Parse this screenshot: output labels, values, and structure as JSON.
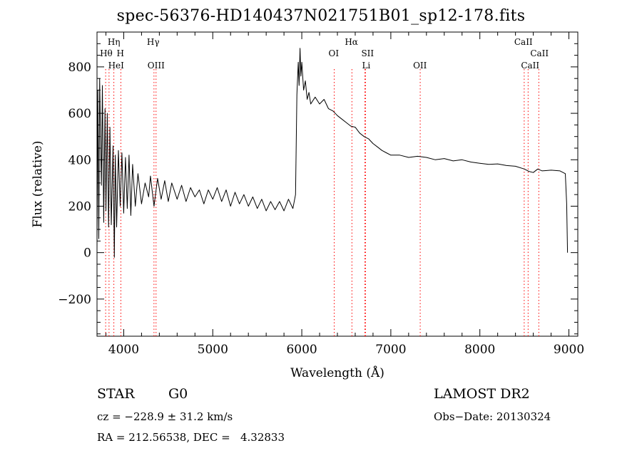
{
  "chart_data": {
    "type": "line",
    "title": "spec-56376-HD140437N021751B01_sp12-178.fits",
    "xlabel": "Wavelength (Å)",
    "ylabel": "Flux (relative)",
    "xlim": [
      3700,
      9100
    ],
    "ylim": [
      -360,
      950
    ],
    "xticks": [
      4000,
      5000,
      6000,
      7000,
      8000,
      9000
    ],
    "yticks": [
      -200,
      0,
      200,
      400,
      600,
      800
    ],
    "grid": false,
    "line_color": "#000000",
    "marker_color": "#ff0000",
    "series": [
      {
        "values": [
          [
            3700,
            20
          ],
          [
            3710,
            700
          ],
          [
            3720,
            60
          ],
          [
            3730,
            750
          ],
          [
            3740,
            480
          ],
          [
            3750,
            290
          ],
          [
            3760,
            720
          ],
          [
            3775,
            130
          ],
          [
            3790,
            620
          ],
          [
            3800,
            180
          ],
          [
            3815,
            600
          ],
          [
            3830,
            110
          ],
          [
            3845,
            540
          ],
          [
            3860,
            120
          ],
          [
            3880,
            460
          ],
          [
            3895,
            -20
          ],
          [
            3905,
            420
          ],
          [
            3920,
            110
          ],
          [
            3940,
            440
          ],
          [
            3960,
            200
          ],
          [
            3980,
            430
          ],
          [
            4000,
            170
          ],
          [
            4020,
            410
          ],
          [
            4040,
            190
          ],
          [
            4060,
            420
          ],
          [
            4080,
            160
          ],
          [
            4100,
            380
          ],
          [
            4130,
            200
          ],
          [
            4160,
            340
          ],
          [
            4200,
            210
          ],
          [
            4240,
            300
          ],
          [
            4280,
            240
          ],
          [
            4300,
            330
          ],
          [
            4340,
            200
          ],
          [
            4380,
            320
          ],
          [
            4420,
            230
          ],
          [
            4460,
            310
          ],
          [
            4500,
            220
          ],
          [
            4540,
            300
          ],
          [
            4600,
            230
          ],
          [
            4650,
            290
          ],
          [
            4700,
            220
          ],
          [
            4750,
            280
          ],
          [
            4800,
            240
          ],
          [
            4850,
            270
          ],
          [
            4900,
            210
          ],
          [
            4950,
            270
          ],
          [
            5000,
            230
          ],
          [
            5050,
            280
          ],
          [
            5100,
            220
          ],
          [
            5150,
            270
          ],
          [
            5200,
            200
          ],
          [
            5250,
            260
          ],
          [
            5300,
            210
          ],
          [
            5350,
            250
          ],
          [
            5400,
            200
          ],
          [
            5450,
            240
          ],
          [
            5500,
            190
          ],
          [
            5550,
            230
          ],
          [
            5600,
            180
          ],
          [
            5650,
            220
          ],
          [
            5700,
            185
          ],
          [
            5750,
            220
          ],
          [
            5800,
            180
          ],
          [
            5850,
            230
          ],
          [
            5900,
            190
          ],
          [
            5930,
            250
          ],
          [
            5945,
            680
          ],
          [
            5960,
            820
          ],
          [
            5970,
            720
          ],
          [
            5980,
            880
          ],
          [
            5990,
            760
          ],
          [
            6000,
            820
          ],
          [
            6020,
            700
          ],
          [
            6040,
            740
          ],
          [
            6060,
            660
          ],
          [
            6080,
            690
          ],
          [
            6100,
            640
          ],
          [
            6150,
            670
          ],
          [
            6200,
            640
          ],
          [
            6250,
            660
          ],
          [
            6300,
            620
          ],
          [
            6350,
            610
          ],
          [
            6400,
            590
          ],
          [
            6450,
            575
          ],
          [
            6500,
            560
          ],
          [
            6550,
            545
          ],
          [
            6600,
            540
          ],
          [
            6650,
            515
          ],
          [
            6700,
            500
          ],
          [
            6750,
            490
          ],
          [
            6800,
            470
          ],
          [
            6850,
            455
          ],
          [
            6900,
            440
          ],
          [
            6950,
            430
          ],
          [
            7000,
            420
          ],
          [
            7100,
            420
          ],
          [
            7200,
            410
          ],
          [
            7300,
            415
          ],
          [
            7400,
            410
          ],
          [
            7500,
            400
          ],
          [
            7600,
            405
          ],
          [
            7700,
            395
          ],
          [
            7800,
            400
          ],
          [
            7900,
            390
          ],
          [
            8000,
            385
          ],
          [
            8100,
            380
          ],
          [
            8200,
            382
          ],
          [
            8300,
            375
          ],
          [
            8400,
            372
          ],
          [
            8500,
            360
          ],
          [
            8550,
            350
          ],
          [
            8600,
            345
          ],
          [
            8650,
            360
          ],
          [
            8700,
            352
          ],
          [
            8800,
            355
          ],
          [
            8900,
            352
          ],
          [
            8960,
            340
          ],
          [
            8975,
            210
          ],
          [
            8985,
            0
          ]
        ]
      }
    ],
    "line_markers": [
      {
        "label": "Hη",
        "wavelength": 3835,
        "row": 0,
        "dx": -2
      },
      {
        "label": "Hθ",
        "wavelength": 3797,
        "row": 1,
        "dx": -8
      },
      {
        "label": "H",
        "wavelength": 3968,
        "row": 1,
        "dx": -6
      },
      {
        "label": "HeI",
        "wavelength": 3889,
        "row": 2,
        "dx": -8
      },
      {
        "label": "Hγ",
        "wavelength": 4340,
        "row": 0,
        "dx": -10
      },
      {
        "label": "OIII",
        "wavelength": 4363,
        "row": 2,
        "dx": -12
      },
      {
        "label": "OI",
        "wavelength": 6364,
        "row": 1,
        "dx": -8
      },
      {
        "label": "Hα",
        "wavelength": 6563,
        "row": 0,
        "dx": -10
      },
      {
        "label": "SII",
        "wavelength": 6716,
        "row": 1,
        "dx": -6
      },
      {
        "label": "Li",
        "wavelength": 6708,
        "row": 2,
        "dx": -4
      },
      {
        "label": "OII",
        "wavelength": 7330,
        "row": 2,
        "dx": -10
      },
      {
        "label": "CaII",
        "wavelength": 8498,
        "row": 0,
        "dx": -14
      },
      {
        "label": "CaII",
        "wavelength": 8662,
        "row": 1,
        "dx": -12
      },
      {
        "label": "CaII",
        "wavelength": 8542,
        "row": 2,
        "dx": -10
      }
    ]
  },
  "info": {
    "class_label": "STAR",
    "subclass_label": "G0",
    "survey": "LAMOST DR2",
    "redshift": "cz = −228.9 ± 31.2 km/s",
    "obs_date": "Obs−Date: 20130324",
    "coords": "RA = 212.56538, DEC =   4.32833"
  }
}
